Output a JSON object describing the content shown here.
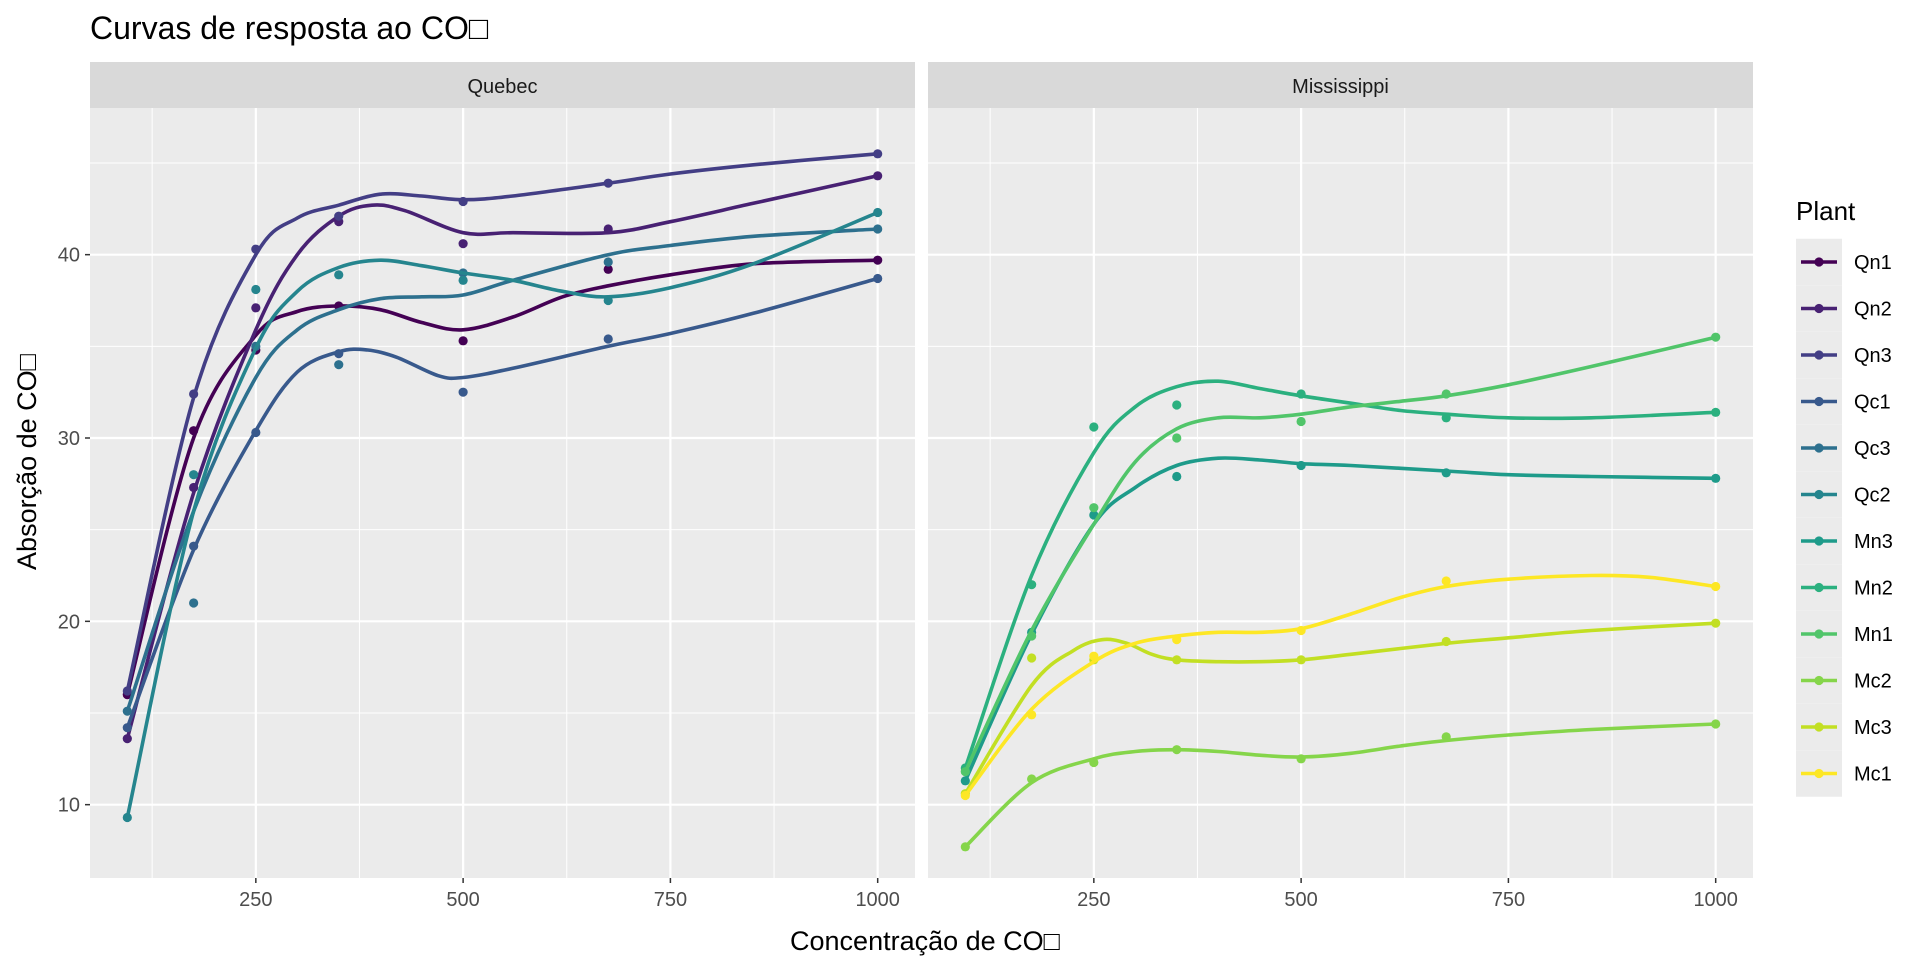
{
  "chart_data": {
    "type": "line",
    "title": "Curvas de resposta ao CO□",
    "xlabel": "Concentração de CO□",
    "ylabel": "Absorção de CO□",
    "xlim": [
      50,
      1045
    ],
    "ylim": [
      6,
      48
    ],
    "x_ticks": [
      250,
      500,
      750,
      1000
    ],
    "x_tick_labels": [
      "250",
      "500",
      "750",
      "1000"
    ],
    "y_ticks": [
      10,
      20,
      30,
      40
    ],
    "y_tick_labels": [
      "10",
      "20",
      "30",
      "40"
    ],
    "grid": true,
    "legend": {
      "title": "Plant",
      "position": "right",
      "entries": [
        "Qn1",
        "Qn2",
        "Qn3",
        "Qc1",
        "Qc3",
        "Qc2",
        "Mn3",
        "Mn2",
        "Mn1",
        "Mc2",
        "Mc3",
        "Mc1"
      ]
    },
    "x": [
      95,
      175,
      250,
      350,
      500,
      675,
      1000
    ],
    "panels": [
      {
        "name": "Quebec",
        "series": [
          {
            "name": "Qn1",
            "color": "#440154",
            "values": [
              16.0,
              30.4,
              34.8,
              37.2,
              35.3,
              39.2,
              39.7
            ],
            "smooth": [
              [
                95,
                16.0
              ],
              [
                175,
                30.0
              ],
              [
                250,
                35.6
              ],
              [
                300,
                36.9
              ],
              [
                350,
                37.2
              ],
              [
                400,
                37.0
              ],
              [
                450,
                36.3
              ],
              [
                500,
                35.9
              ],
              [
                560,
                36.6
              ],
              [
                620,
                37.7
              ],
              [
                675,
                38.3
              ],
              [
                750,
                38.9
              ],
              [
                850,
                39.5
              ],
              [
                1000,
                39.7
              ]
            ]
          },
          {
            "name": "Qn2",
            "color": "#482173",
            "values": [
              13.6,
              27.3,
              37.1,
              41.8,
              40.6,
              41.4,
              44.3
            ],
            "smooth": [
              [
                95,
                13.6
              ],
              [
                175,
                27.0
              ],
              [
                250,
                35.9
              ],
              [
                300,
                40.0
              ],
              [
                350,
                42.1
              ],
              [
                390,
                42.7
              ],
              [
                430,
                42.4
              ],
              [
                500,
                41.2
              ],
              [
                560,
                41.2
              ],
              [
                675,
                41.2
              ],
              [
                750,
                41.8
              ],
              [
                850,
                42.8
              ],
              [
                1000,
                44.3
              ]
            ]
          },
          {
            "name": "Qn3",
            "color": "#433E85",
            "values": [
              16.2,
              32.4,
              40.3,
              42.1,
              42.9,
              43.9,
              45.5
            ],
            "smooth": [
              [
                95,
                16.2
              ],
              [
                175,
                32.2
              ],
              [
                250,
                40.0
              ],
              [
                300,
                42.0
              ],
              [
                350,
                42.7
              ],
              [
                400,
                43.3
              ],
              [
                450,
                43.2
              ],
              [
                500,
                43.0
              ],
              [
                560,
                43.2
              ],
              [
                675,
                43.9
              ],
              [
                750,
                44.4
              ],
              [
                850,
                44.9
              ],
              [
                1000,
                45.5
              ]
            ]
          },
          {
            "name": "Qc1",
            "color": "#38598C",
            "values": [
              14.2,
              24.1,
              30.3,
              34.6,
              32.5,
              35.4,
              38.7
            ],
            "smooth": [
              [
                95,
                14.2
              ],
              [
                175,
                23.9
              ],
              [
                250,
                30.4
              ],
              [
                300,
                33.6
              ],
              [
                350,
                34.7
              ],
              [
                385,
                34.8
              ],
              [
                420,
                34.4
              ],
              [
                470,
                33.4
              ],
              [
                500,
                33.3
              ],
              [
                560,
                33.8
              ],
              [
                675,
                35.0
              ],
              [
                750,
                35.7
              ],
              [
                850,
                36.8
              ],
              [
                1000,
                38.7
              ]
            ]
          },
          {
            "name": "Qc3",
            "color": "#2D708E",
            "values": [
              15.1,
              21.0,
              35.0,
              34.0,
              39.0,
              39.6,
              41.4
            ],
            "smooth": [
              [
                95,
                15.1
              ],
              [
                175,
                26.0
              ],
              [
                250,
                33.3
              ],
              [
                300,
                35.9
              ],
              [
                350,
                37.0
              ],
              [
                400,
                37.6
              ],
              [
                450,
                37.7
              ],
              [
                500,
                37.8
              ],
              [
                560,
                38.6
              ],
              [
                675,
                40.0
              ],
              [
                750,
                40.5
              ],
              [
                850,
                41.0
              ],
              [
                1000,
                41.4
              ]
            ]
          },
          {
            "name": "Qc2",
            "color": "#25858E",
            "values": [
              9.3,
              28.0,
              38.1,
              38.9,
              38.6,
              37.5,
              42.3
            ],
            "smooth": [
              [
                95,
                9.3
              ],
              [
                175,
                26.0
              ],
              [
                250,
                34.9
              ],
              [
                300,
                38.0
              ],
              [
                350,
                39.3
              ],
              [
                400,
                39.7
              ],
              [
                450,
                39.4
              ],
              [
                500,
                39.0
              ],
              [
                560,
                38.6
              ],
              [
                620,
                38.0
              ],
              [
                675,
                37.7
              ],
              [
                750,
                38.2
              ],
              [
                850,
                39.5
              ],
              [
                1000,
                42.3
              ]
            ]
          }
        ]
      },
      {
        "name": "Mississippi",
        "series": [
          {
            "name": "Mn3",
            "color": "#1E9B8A",
            "values": [
              11.3,
              19.4,
              25.8,
              27.9,
              28.5,
              28.1,
              27.8
            ],
            "smooth": [
              [
                95,
                11.3
              ],
              [
                175,
                19.3
              ],
              [
                250,
                25.3
              ],
              [
                300,
                27.3
              ],
              [
                350,
                28.5
              ],
              [
                400,
                28.9
              ],
              [
                450,
                28.8
              ],
              [
                500,
                28.6
              ],
              [
                560,
                28.5
              ],
              [
                675,
                28.2
              ],
              [
                750,
                28.0
              ],
              [
                850,
                27.9
              ],
              [
                1000,
                27.8
              ]
            ]
          },
          {
            "name": "Mn2",
            "color": "#2BB07F",
            "values": [
              12.0,
              22.0,
              30.6,
              31.8,
              32.4,
              31.1,
              31.4
            ],
            "smooth": [
              [
                95,
                12.0
              ],
              [
                175,
                22.5
              ],
              [
                250,
                29.2
              ],
              [
                300,
                31.7
              ],
              [
                350,
                32.8
              ],
              [
                400,
                33.1
              ],
              [
                450,
                32.7
              ],
              [
                500,
                32.3
              ],
              [
                560,
                31.9
              ],
              [
                620,
                31.5
              ],
              [
                675,
                31.3
              ],
              [
                750,
                31.1
              ],
              [
                850,
                31.1
              ],
              [
                1000,
                31.4
              ]
            ]
          },
          {
            "name": "Mn1",
            "color": "#51C56A",
            "values": [
              11.8,
              19.2,
              26.2,
              30.0,
              30.9,
              32.4,
              35.5
            ],
            "smooth": [
              [
                95,
                11.8
              ],
              [
                175,
                19.5
              ],
              [
                250,
                25.3
              ],
              [
                300,
                28.7
              ],
              [
                350,
                30.5
              ],
              [
                400,
                31.1
              ],
              [
                450,
                31.1
              ],
              [
                500,
                31.3
              ],
              [
                560,
                31.7
              ],
              [
                620,
                32.0
              ],
              [
                675,
                32.3
              ],
              [
                750,
                32.9
              ],
              [
                850,
                33.9
              ],
              [
                1000,
                35.5
              ]
            ]
          },
          {
            "name": "Mc2",
            "color": "#85D54A",
            "values": [
              7.7,
              11.4,
              12.3,
              13.0,
              12.5,
              13.7,
              14.4
            ],
            "smooth": [
              [
                95,
                7.7
              ],
              [
                175,
                11.2
              ],
              [
                250,
                12.5
              ],
              [
                300,
                12.9
              ],
              [
                350,
                13.0
              ],
              [
                400,
                12.9
              ],
              [
                450,
                12.7
              ],
              [
                500,
                12.6
              ],
              [
                560,
                12.8
              ],
              [
                620,
                13.2
              ],
              [
                675,
                13.5
              ],
              [
                750,
                13.8
              ],
              [
                850,
                14.1
              ],
              [
                1000,
                14.4
              ]
            ]
          },
          {
            "name": "Mc3",
            "color": "#C2DF23",
            "values": [
              10.6,
              18.0,
              17.9,
              17.9,
              17.9,
              18.9,
              19.9
            ],
            "smooth": [
              [
                95,
                10.6
              ],
              [
                175,
                16.5
              ],
              [
                225,
                18.4
              ],
              [
                260,
                19.0
              ],
              [
                290,
                18.8
              ],
              [
                320,
                18.2
              ],
              [
                350,
                17.9
              ],
              [
                400,
                17.8
              ],
              [
                450,
                17.8
              ],
              [
                500,
                17.9
              ],
              [
                560,
                18.2
              ],
              [
                675,
                18.8
              ],
              [
                750,
                19.1
              ],
              [
                850,
                19.5
              ],
              [
                1000,
                19.9
              ]
            ]
          },
          {
            "name": "Mc1",
            "color": "#FDE725",
            "values": [
              10.5,
              14.9,
              18.1,
              19.0,
              19.5,
              22.2,
              21.9
            ],
            "smooth": [
              [
                95,
                10.5
              ],
              [
                175,
                15.2
              ],
              [
                250,
                17.8
              ],
              [
                300,
                18.8
              ],
              [
                350,
                19.2
              ],
              [
                400,
                19.4
              ],
              [
                450,
                19.4
              ],
              [
                500,
                19.6
              ],
              [
                560,
                20.4
              ],
              [
                620,
                21.3
              ],
              [
                675,
                21.9
              ],
              [
                750,
                22.3
              ],
              [
                850,
                22.5
              ],
              [
                920,
                22.4
              ],
              [
                1000,
                21.9
              ]
            ]
          }
        ]
      }
    ]
  }
}
